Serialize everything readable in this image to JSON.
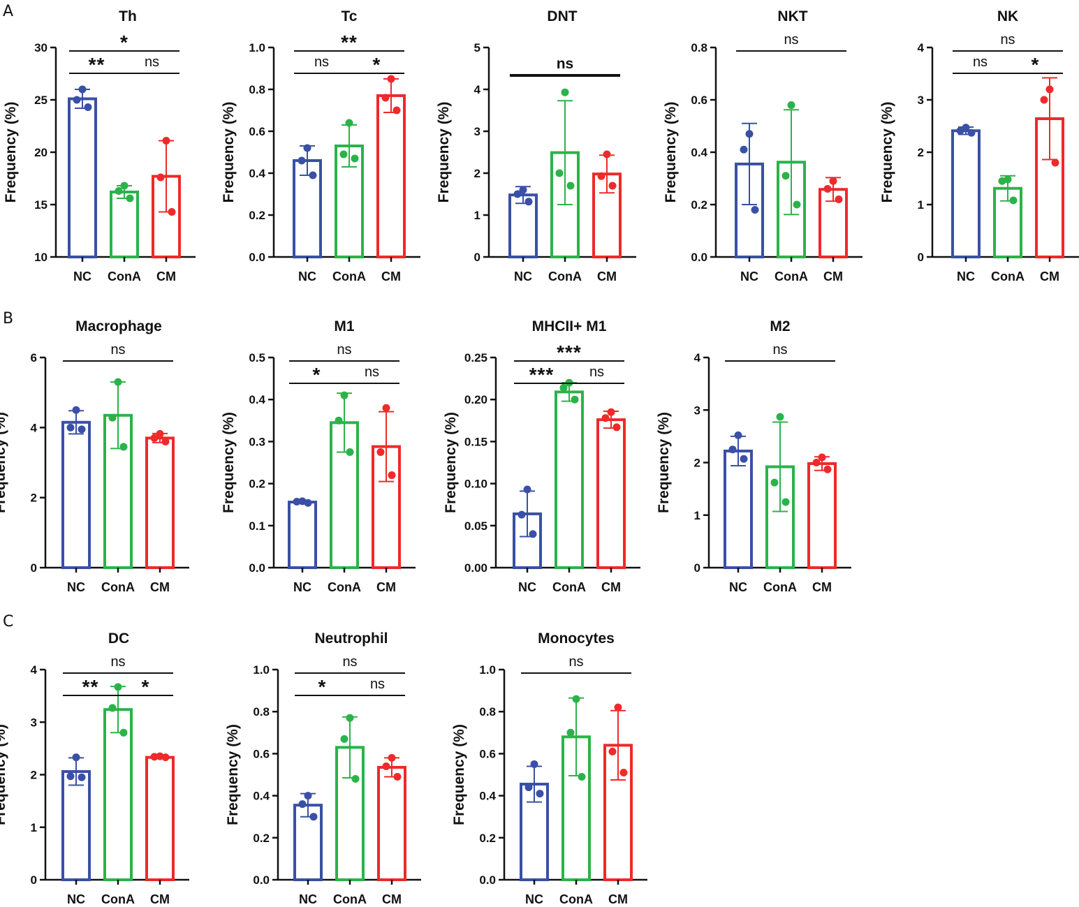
{
  "panel_letters": [
    "A",
    "B",
    "C"
  ],
  "colors": {
    "NC": "#3a50a6",
    "ConA": "#2bb34a",
    "CM": "#ee2a2a",
    "axis": "#111111"
  },
  "chart_data": [
    {
      "type": "bar",
      "panel": "A",
      "title": "Th",
      "ylabel": "Frequency (%)",
      "categories": [
        "NC",
        "ConA",
        "CM"
      ],
      "ylim": [
        10,
        30
      ],
      "yticks": [
        "10",
        "15",
        "20",
        "25",
        "30"
      ],
      "means": [
        25.1,
        16.2,
        17.7
      ],
      "errors": [
        0.9,
        0.6,
        3.4
      ],
      "points": [
        [
          26.0,
          25.0,
          24.3
        ],
        [
          16.8,
          16.3,
          15.6
        ],
        [
          21.1,
          17.6,
          14.3
        ]
      ],
      "comparisons": [
        {
          "from": 0,
          "to": 1,
          "label": "**"
        },
        {
          "from": 0,
          "to": 2,
          "label": "*"
        },
        {
          "from": 1,
          "to": 2,
          "label": "ns"
        }
      ]
    },
    {
      "type": "bar",
      "panel": "A",
      "title": "Tc",
      "ylabel": "Frequency (%)",
      "categories": [
        "NC",
        "ConA",
        "CM"
      ],
      "ylim": [
        0,
        1
      ],
      "yticks": [
        "0.0",
        "0.2",
        "0.4",
        "0.6",
        "0.8",
        "1.0"
      ],
      "means": [
        0.46,
        0.53,
        0.77
      ],
      "errors": [
        0.07,
        0.1,
        0.08
      ],
      "points": [
        [
          0.52,
          0.46,
          0.39
        ],
        [
          0.64,
          0.49,
          0.47
        ],
        [
          0.85,
          0.76,
          0.7
        ]
      ],
      "comparisons": [
        {
          "from": 0,
          "to": 1,
          "label": "ns"
        },
        {
          "from": 0,
          "to": 2,
          "label": "**"
        },
        {
          "from": 1,
          "to": 2,
          "label": "*"
        }
      ]
    },
    {
      "type": "bar",
      "panel": "A",
      "title": "DNT",
      "ylabel": "Frequency (%)",
      "categories": [
        "NC",
        "ConA",
        "CM"
      ],
      "ylim": [
        0,
        5
      ],
      "yticks": [
        "0",
        "1",
        "2",
        "3",
        "4",
        "5"
      ],
      "means": [
        1.48,
        2.49,
        1.98
      ],
      "errors": [
        0.2,
        1.24,
        0.45
      ],
      "points": [
        [
          1.6,
          1.5,
          1.32
        ],
        [
          3.93,
          2.0,
          1.7
        ],
        [
          2.45,
          1.93,
          1.7
        ]
      ],
      "comparisons": [
        {
          "from": 0,
          "to": 2,
          "label": "ns",
          "bold": true
        }
      ]
    },
    {
      "type": "bar",
      "panel": "A",
      "title": "NKT",
      "ylabel": "Frequency (%)",
      "categories": [
        "NC",
        "ConA",
        "CM"
      ],
      "ylim": [
        0,
        0.8
      ],
      "yticks": [
        "0.0",
        "0.2",
        "0.4",
        "0.6",
        "0.8"
      ],
      "means": [
        0.355,
        0.362,
        0.258
      ],
      "errors": [
        0.155,
        0.2,
        0.045
      ],
      "points": [
        [
          0.47,
          0.41,
          0.18
        ],
        [
          0.58,
          0.31,
          0.2
        ],
        [
          0.29,
          0.26,
          0.22
        ]
      ],
      "comparisons": [
        {
          "from": 0,
          "to": 2,
          "label": "ns"
        }
      ]
    },
    {
      "type": "bar",
      "panel": "A",
      "title": "NK",
      "ylabel": "Frequency (%)",
      "categories": [
        "NC",
        "ConA",
        "CM"
      ],
      "ylim": [
        0,
        4
      ],
      "yticks": [
        "0",
        "1",
        "2",
        "3",
        "4"
      ],
      "means": [
        2.41,
        1.31,
        2.64
      ],
      "errors": [
        0.07,
        0.24,
        0.78
      ],
      "points": [
        [
          2.47,
          2.41,
          2.37
        ],
        [
          1.48,
          1.45,
          1.08
        ],
        [
          3.2,
          3.0,
          1.8
        ]
      ],
      "comparisons": [
        {
          "from": 0,
          "to": 1,
          "label": "ns"
        },
        {
          "from": 0,
          "to": 2,
          "label": "ns"
        },
        {
          "from": 1,
          "to": 2,
          "label": "*"
        }
      ]
    },
    {
      "type": "bar",
      "panel": "B",
      "title": "Macrophage",
      "ylabel": "Frequency (%)",
      "categories": [
        "NC",
        "ConA",
        "CM"
      ],
      "ylim": [
        0,
        6
      ],
      "yticks": [
        "0",
        "2",
        "4",
        "6"
      ],
      "means": [
        4.15,
        4.35,
        3.7
      ],
      "errors": [
        0.33,
        0.95,
        0.13
      ],
      "points": [
        [
          4.5,
          4.0,
          3.95
        ],
        [
          5.3,
          4.28,
          3.45
        ],
        [
          3.82,
          3.7,
          3.6
        ]
      ],
      "comparisons": [
        {
          "from": 0,
          "to": 2,
          "label": "ns"
        }
      ]
    },
    {
      "type": "bar",
      "panel": "B",
      "title": "M1",
      "ylabel": "Frequency (%)",
      "categories": [
        "NC",
        "ConA",
        "CM"
      ],
      "ylim": [
        0,
        0.5
      ],
      "yticks": [
        "0.0",
        "0.1",
        "0.2",
        "0.3",
        "0.4",
        "0.5"
      ],
      "means": [
        0.156,
        0.345,
        0.288
      ],
      "errors": [
        0.003,
        0.07,
        0.083
      ],
      "points": [
        [
          0.158,
          0.157,
          0.154
        ],
        [
          0.41,
          0.35,
          0.275
        ],
        [
          0.38,
          0.275,
          0.22
        ]
      ],
      "comparisons": [
        {
          "from": 0,
          "to": 1,
          "label": "*"
        },
        {
          "from": 0,
          "to": 2,
          "label": "ns"
        },
        {
          "from": 1,
          "to": 2,
          "label": "ns"
        }
      ]
    },
    {
      "type": "bar",
      "panel": "B",
      "title": "MHCII+ M1",
      "ylabel": "Frequency (%)",
      "categories": [
        "NC",
        "ConA",
        "CM"
      ],
      "ylim": [
        0,
        0.25
      ],
      "yticks": [
        "0.00",
        "0.05",
        "0.10",
        "0.15",
        "0.20",
        "0.25"
      ],
      "means": [
        0.064,
        0.209,
        0.176
      ],
      "errors": [
        0.027,
        0.011,
        0.01
      ],
      "points": [
        [
          0.093,
          0.063,
          0.04
        ],
        [
          0.22,
          0.214,
          0.2
        ],
        [
          0.185,
          0.178,
          0.167
        ]
      ],
      "comparisons": [
        {
          "from": 0,
          "to": 1,
          "label": "***"
        },
        {
          "from": 0,
          "to": 2,
          "label": "***"
        },
        {
          "from": 1,
          "to": 2,
          "label": "ns"
        }
      ]
    },
    {
      "type": "bar",
      "panel": "B",
      "title": "M2",
      "ylabel": "Frequency (%)",
      "categories": [
        "NC",
        "ConA",
        "CM"
      ],
      "ylim": [
        0,
        4
      ],
      "yticks": [
        "0",
        "1",
        "2",
        "3",
        "4"
      ],
      "means": [
        2.22,
        1.92,
        1.98
      ],
      "errors": [
        0.28,
        0.85,
        0.13
      ],
      "points": [
        [
          2.52,
          2.25,
          2.07
        ],
        [
          2.87,
          1.62,
          1.25
        ],
        [
          2.1,
          2.0,
          1.87
        ]
      ],
      "comparisons": [
        {
          "from": 0,
          "to": 2,
          "label": "ns"
        }
      ]
    },
    {
      "type": "bar",
      "panel": "C",
      "title": "DC",
      "ylabel": "Frequency (%)",
      "categories": [
        "NC",
        "ConA",
        "CM"
      ],
      "ylim": [
        0,
        4
      ],
      "yticks": [
        "0",
        "1",
        "2",
        "3",
        "4"
      ],
      "means": [
        2.06,
        3.24,
        2.33
      ],
      "errors": [
        0.26,
        0.44,
        0.02
      ],
      "points": [
        [
          2.33,
          1.97,
          1.95
        ],
        [
          3.67,
          3.27,
          2.8
        ],
        [
          2.35,
          2.34,
          2.33
        ]
      ],
      "comparisons": [
        {
          "from": 0,
          "to": 1,
          "label": "**"
        },
        {
          "from": 0,
          "to": 2,
          "label": "ns"
        },
        {
          "from": 1,
          "to": 2,
          "label": "*"
        }
      ]
    },
    {
      "type": "bar",
      "panel": "C",
      "title": "Neutrophil",
      "ylabel": "Frequency (%)",
      "categories": [
        "NC",
        "ConA",
        "CM"
      ],
      "ylim": [
        0,
        1
      ],
      "yticks": [
        "0.0",
        "0.2",
        "0.4",
        "0.6",
        "0.8",
        "1.0"
      ],
      "means": [
        0.355,
        0.63,
        0.535
      ],
      "errors": [
        0.055,
        0.145,
        0.045
      ],
      "points": [
        [
          0.4,
          0.36,
          0.3
        ],
        [
          0.77,
          0.67,
          0.48
        ],
        [
          0.58,
          0.54,
          0.49
        ]
      ],
      "comparisons": [
        {
          "from": 0,
          "to": 1,
          "label": "*"
        },
        {
          "from": 0,
          "to": 2,
          "label": "ns"
        },
        {
          "from": 1,
          "to": 2,
          "label": "ns"
        }
      ]
    },
    {
      "type": "bar",
      "panel": "C",
      "title": "Monocytes",
      "ylabel": "Frequency (%)",
      "categories": [
        "NC",
        "ConA",
        "CM"
      ],
      "ylim": [
        0,
        1
      ],
      "yticks": [
        "0.0",
        "0.2",
        "0.4",
        "0.6",
        "0.8",
        "1.0"
      ],
      "means": [
        0.455,
        0.68,
        0.64
      ],
      "errors": [
        0.085,
        0.185,
        0.165
      ],
      "points": [
        [
          0.55,
          0.44,
          0.41
        ],
        [
          0.86,
          0.7,
          0.49
        ],
        [
          0.82,
          0.61,
          0.51
        ]
      ],
      "comparisons": [
        {
          "from": 0,
          "to": 2,
          "label": "ns"
        }
      ]
    }
  ]
}
